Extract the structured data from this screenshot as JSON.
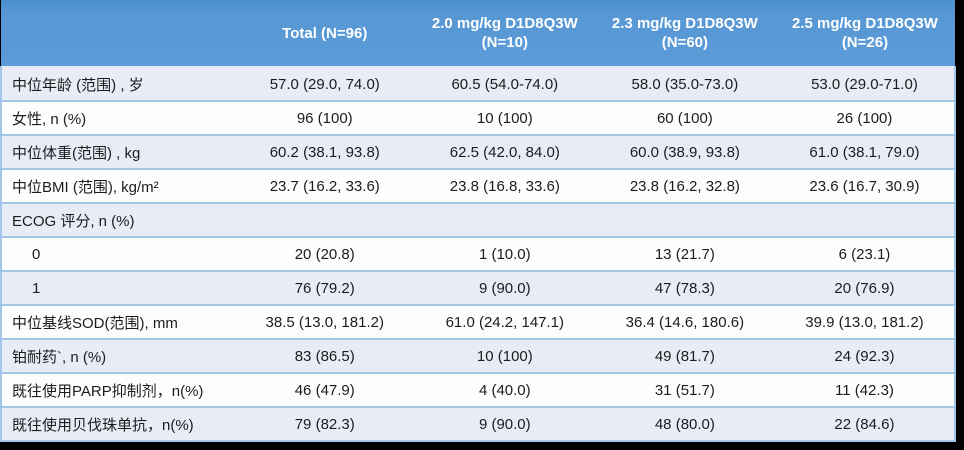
{
  "table": {
    "header": {
      "columns": [
        {
          "line1": "",
          "line2": ""
        },
        {
          "line1": "Total (N=96)",
          "line2": ""
        },
        {
          "line1": "2.0 mg/kg D1D8Q3W",
          "line2": "(N=10)"
        },
        {
          "line1": "2.3 mg/kg D1D8Q3W",
          "line2": "(N=60)"
        },
        {
          "line1": "2.5 mg/kg D1D8Q3W",
          "line2": "(N=26)"
        }
      ]
    },
    "rows": [
      {
        "label": "中位年龄 (范围) , 岁",
        "indent": 0,
        "values": [
          "57.0 (29.0, 74.0)",
          "60.5 (54.0-74.0)",
          "58.0 (35.0-73.0)",
          "53.0 (29.0-71.0)"
        ]
      },
      {
        "label": "女性, n (%)",
        "indent": 0,
        "values": [
          "96 (100)",
          "10 (100)",
          "60 (100)",
          "26 (100)"
        ]
      },
      {
        "label": "中位体重(范围) , kg",
        "indent": 0,
        "values": [
          "60.2 (38.1, 93.8)",
          "62.5 (42.0, 84.0)",
          "60.0 (38.9, 93.8)",
          "61.0 (38.1, 79.0)"
        ]
      },
      {
        "label": "中位BMI (范围), kg/m²",
        "indent": 0,
        "values": [
          "23.7 (16.2, 33.6)",
          "23.8 (16.8, 33.6)",
          "23.8 (16.2, 32.8)",
          "23.6 (16.7, 30.9)"
        ]
      },
      {
        "label": "ECOG 评分, n (%)",
        "indent": 0,
        "values": [
          "",
          "",
          "",
          ""
        ]
      },
      {
        "label": "0",
        "indent": 1,
        "values": [
          "20 (20.8)",
          "1 (10.0)",
          "13 (21.7)",
          "6 (23.1)"
        ]
      },
      {
        "label": "1",
        "indent": 1,
        "values": [
          "76 (79.2)",
          "9 (90.0)",
          "47 (78.3)",
          "20 (76.9)"
        ]
      },
      {
        "label": "中位基线SOD(范围), mm",
        "indent": 0,
        "values": [
          "38.5 (13.0, 181.2)",
          "61.0 (24.2, 147.1)",
          "36.4 (14.6, 180.6)",
          "39.9 (13.0, 181.2)"
        ]
      },
      {
        "label": "铂耐药`, n (%)",
        "indent": 0,
        "values": [
          "83 (86.5)",
          "10 (100)",
          "49 (81.7)",
          "24 (92.3)"
        ]
      },
      {
        "label": "既往使用PARP抑制剂，n(%)",
        "indent": 0,
        "values": [
          "46 (47.9)",
          "4 (40.0)",
          "31 (51.7)",
          "11 (42.3)"
        ]
      },
      {
        "label": "既往使用贝伐珠单抗，n(%)",
        "indent": 0,
        "values": [
          "79 (82.3)",
          "9 (90.0)",
          "48 (80.0)",
          "22 (84.6)"
        ]
      }
    ]
  },
  "colors": {
    "page_bg": "#000000",
    "header_bg": "#5797d4",
    "header_text": "#ffffff",
    "row_tint": "#e7ecf6",
    "row_light": "#fcfdfe",
    "row_border": "#a3c5e8"
  }
}
